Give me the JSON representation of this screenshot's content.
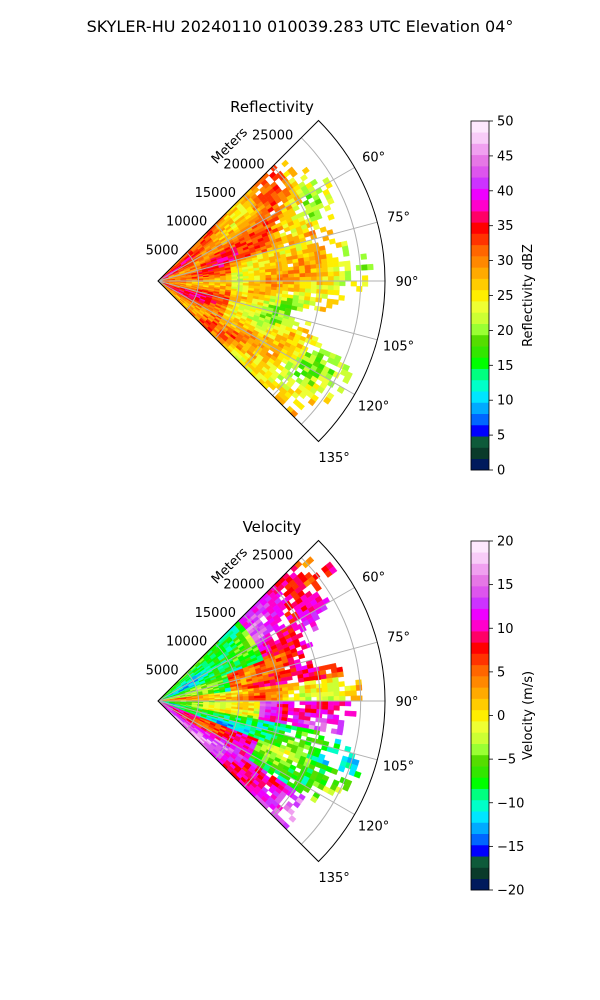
{
  "figure": {
    "suptitle": "SKYLER-HU  20240110  010039.283 UTC Elevation 04°"
  },
  "chart_data": [
    {
      "type": "heatmap",
      "projection": "polar-sector",
      "title": "Reflectivity",
      "radial_axis_label": "Meters",
      "radial_ticks": [
        5000,
        10000,
        15000,
        20000,
        25000
      ],
      "radial_tick_labels": [
        "5000",
        "10000",
        "15000",
        "20000",
        "25000"
      ],
      "rmax": 28000,
      "azimuth_range_deg": [
        45,
        135
      ],
      "azimuth_ticks_deg": [
        60,
        75,
        90,
        105,
        120,
        135
      ],
      "azimuth_tick_labels": [
        "60°",
        "75°",
        "90°",
        "105°",
        "120°",
        "135°"
      ],
      "grid": true,
      "colorbar": {
        "label": "Reflectivity dBZ",
        "range": [
          0,
          50
        ],
        "ticks": [
          0,
          5,
          10,
          15,
          20,
          25,
          30,
          35,
          40,
          45,
          50
        ],
        "tick_labels": [
          "0",
          "5",
          "10",
          "15",
          "20",
          "25",
          "30",
          "35",
          "40",
          "45",
          "50"
        ],
        "colors": [
          "#001a5c",
          "#0a3a2a",
          "#0e5a3a",
          "#0000ff",
          "#0066ff",
          "#00aaff",
          "#00e5ff",
          "#00ffc8",
          "#00ff80",
          "#00ff00",
          "#33e600",
          "#55dd00",
          "#99ff33",
          "#ccff33",
          "#eeff33",
          "#ffee00",
          "#ffcc00",
          "#ffaa00",
          "#ff8800",
          "#ff6600",
          "#ff3300",
          "#ff0000",
          "#ff0066",
          "#ff00cc",
          "#ee00ff",
          "#cc33ff",
          "#dd55ee",
          "#e677e6",
          "#f0a0f0",
          "#f8ccf8",
          "#fde8fd"
        ]
      },
      "field_description": "mostly 20–35 dBZ echoes, strongest (35–40) near radar and along northeast arc"
    },
    {
      "type": "heatmap",
      "projection": "polar-sector",
      "title": "Velocity",
      "radial_axis_label": "Meters",
      "radial_ticks": [
        5000,
        10000,
        15000,
        20000,
        25000
      ],
      "radial_tick_labels": [
        "5000",
        "10000",
        "15000",
        "20000",
        "25000"
      ],
      "rmax": 28000,
      "azimuth_range_deg": [
        45,
        135
      ],
      "azimuth_ticks_deg": [
        60,
        75,
        90,
        105,
        120,
        135
      ],
      "azimuth_tick_labels": [
        "60°",
        "75°",
        "90°",
        "105°",
        "120°",
        "135°"
      ],
      "grid": true,
      "colorbar": {
        "label": "Velocity (m/s)",
        "range": [
          -20,
          20
        ],
        "ticks": [
          -20,
          -15,
          -10,
          -5,
          0,
          5,
          10,
          15,
          20
        ],
        "tick_labels": [
          "−20",
          "−15",
          "−10",
          "−5",
          "0",
          "5",
          "10",
          "15",
          "20"
        ],
        "colors": [
          "#001a5c",
          "#0a3a2a",
          "#0e5a3a",
          "#0000ff",
          "#0066ff",
          "#00aaff",
          "#00e5ff",
          "#00ffc8",
          "#00ff80",
          "#00ff00",
          "#33e600",
          "#55dd00",
          "#99ff33",
          "#ccff33",
          "#eeff33",
          "#ffee00",
          "#ffcc00",
          "#ffaa00",
          "#ff8800",
          "#ff6600",
          "#ff3300",
          "#ff0000",
          "#ff0066",
          "#ff00cc",
          "#ee00ff",
          "#cc33ff",
          "#dd55ee",
          "#e677e6",
          "#f0a0f0",
          "#f8ccf8",
          "#fde8fd"
        ]
      },
      "field_description": "inbound (green/cyan) bands north and center, outbound (red/magenta) bands east and southeast"
    }
  ]
}
